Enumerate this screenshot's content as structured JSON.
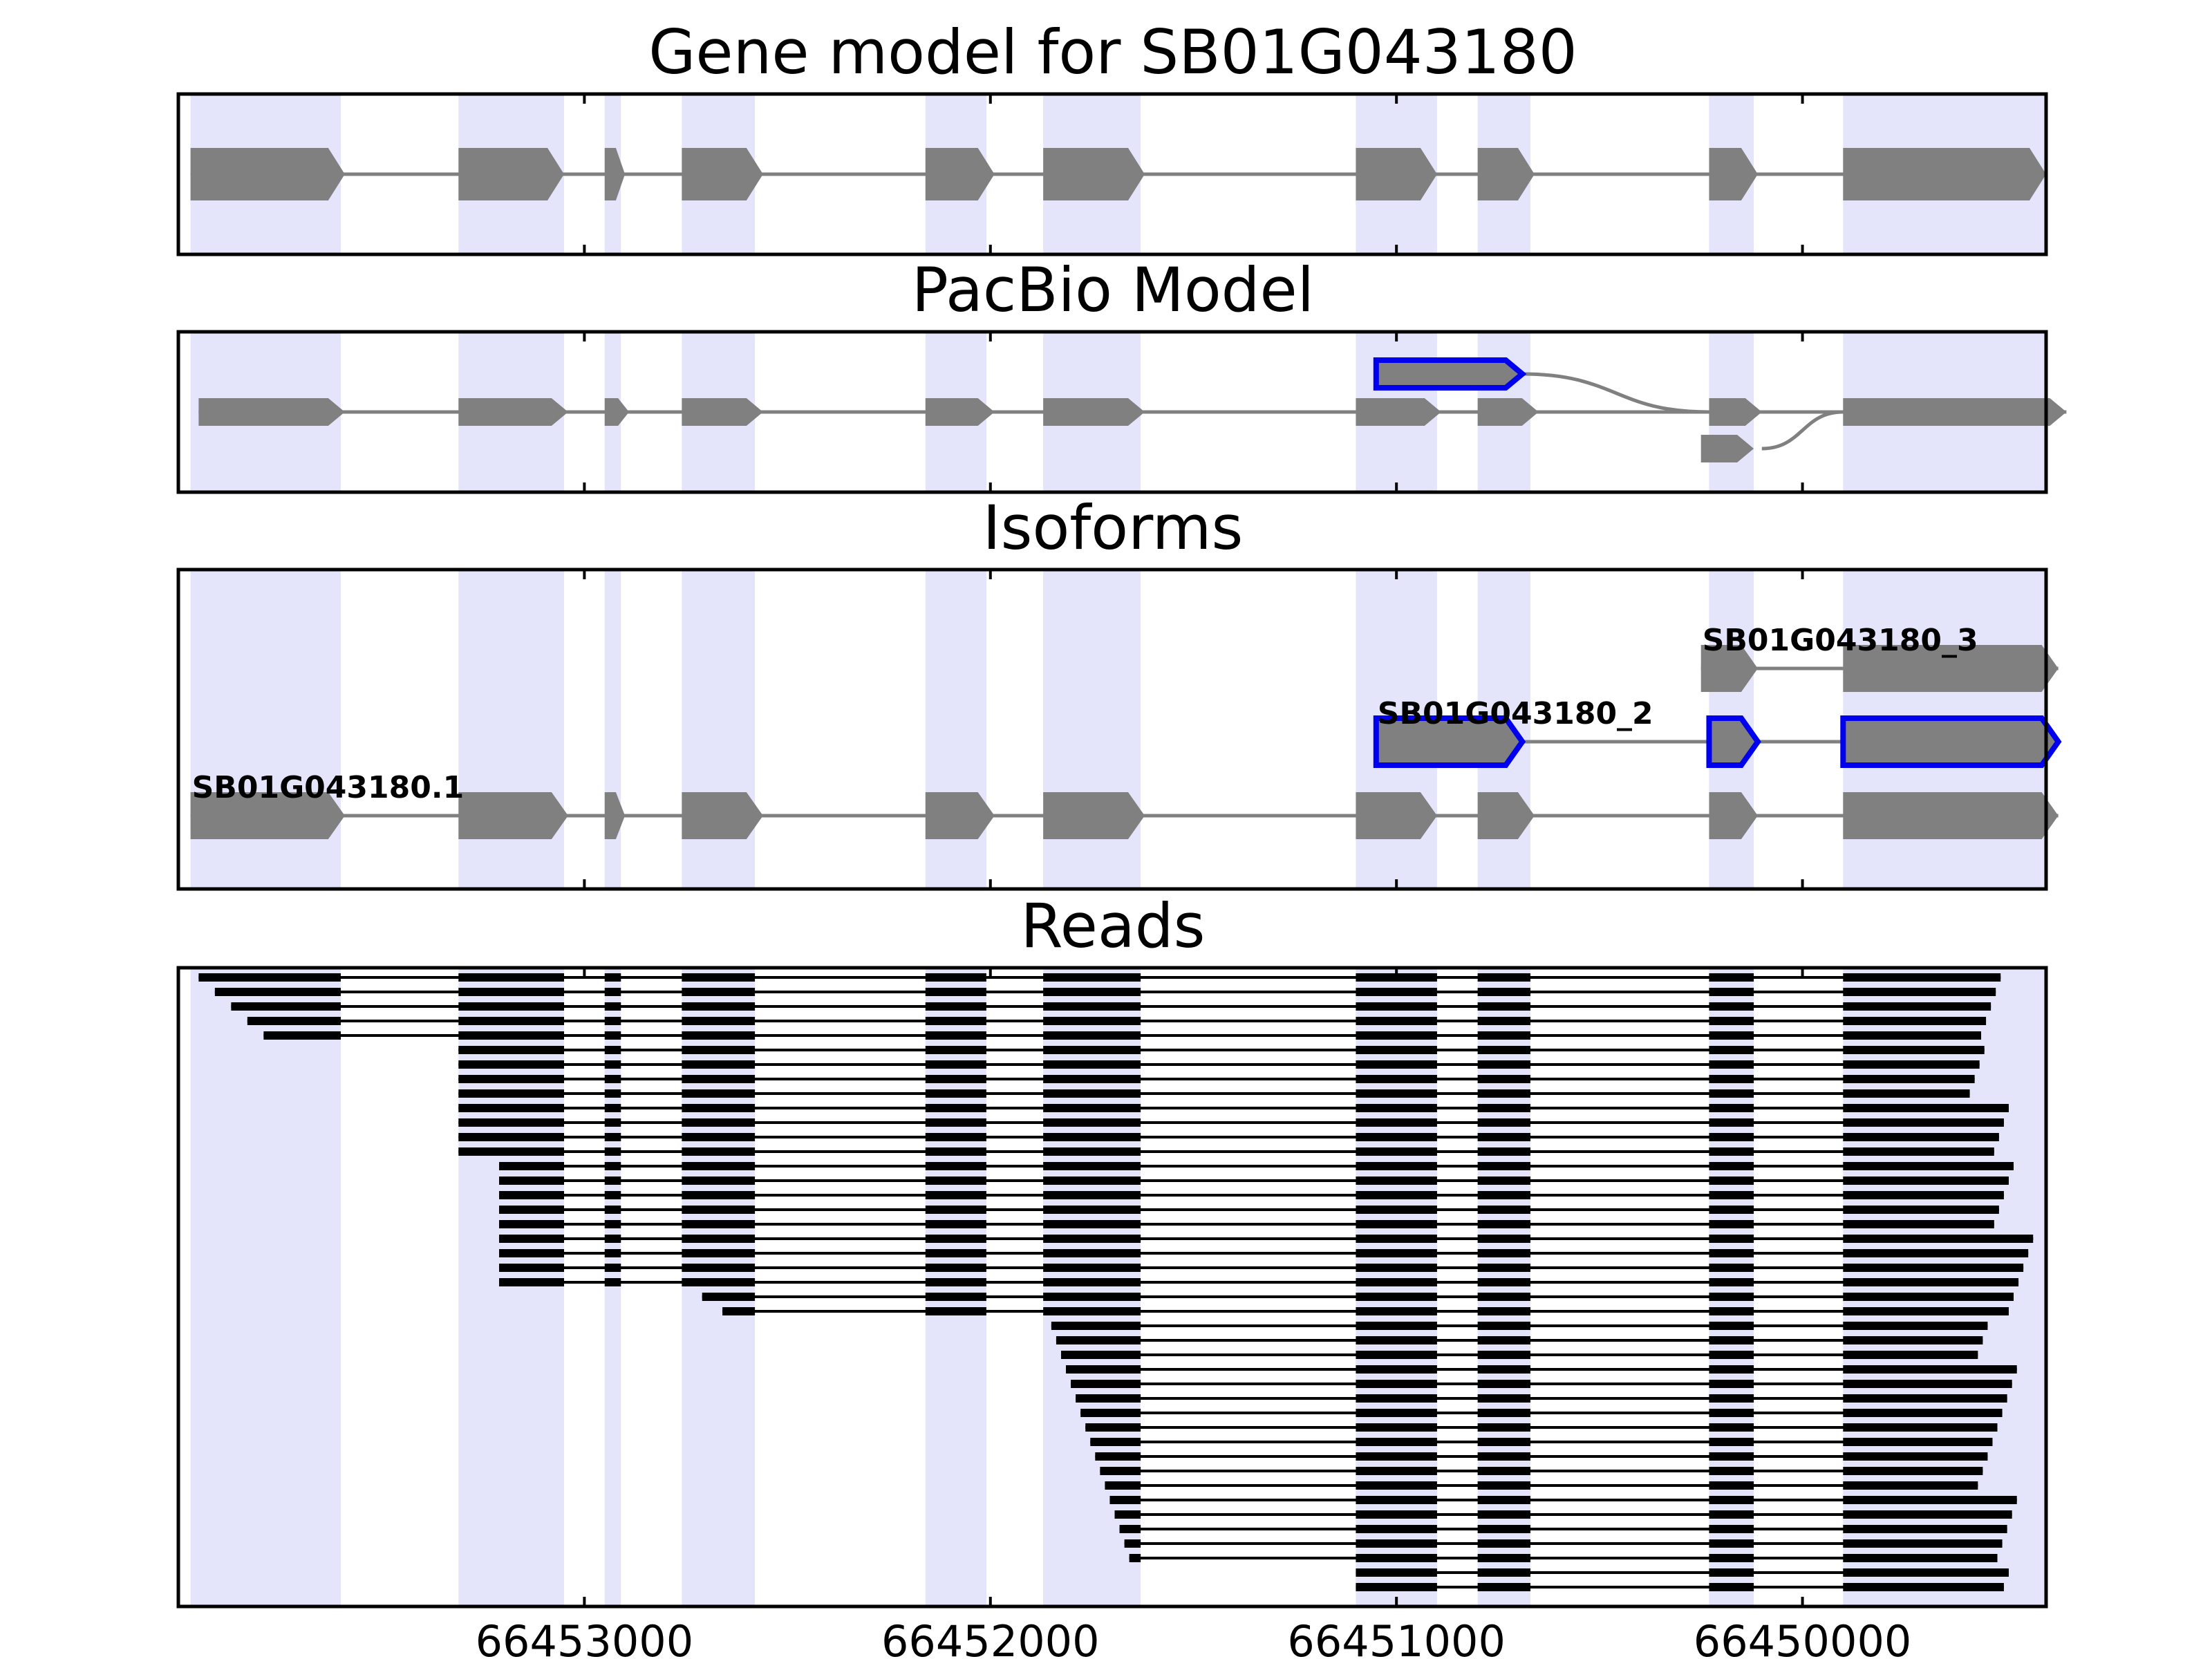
{
  "chart_data": {
    "type": "gene-structure",
    "x_axis": {
      "reversed": true,
      "range": [
        66454000,
        66449400
      ],
      "ticks": [
        66453000,
        66452000,
        66451000,
        66450000
      ],
      "tick_labels": [
        "66453000",
        "66452000",
        "66451000",
        "66450000"
      ]
    },
    "colors": {
      "exon": "#808080",
      "intron": "#808080",
      "highlight": "#0000ee",
      "band": "#e4e4fb",
      "read": "#000000"
    },
    "exon_bands": [
      [
        66453970,
        66453600
      ],
      [
        66453310,
        66453050
      ],
      [
        66452950,
        66452910
      ],
      [
        66452760,
        66452580
      ],
      [
        66452160,
        66452010
      ],
      [
        66451870,
        66451630
      ],
      [
        66451100,
        66450900
      ],
      [
        66450800,
        66450670
      ],
      [
        66450230,
        66450120
      ],
      [
        66449900,
        66449400
      ]
    ],
    "panels": [
      {
        "title": "Gene model for SB01G043180",
        "tracks": [
          {
            "row": 0,
            "exons": [
              [
                66453970,
                66453590
              ],
              [
                66453310,
                66453050
              ],
              [
                66452950,
                66452900
              ],
              [
                66452760,
                66452560
              ],
              [
                66452160,
                66451990
              ],
              [
                66451870,
                66451620
              ],
              [
                66451100,
                66450900
              ],
              [
                66450800,
                66450660
              ],
              [
                66450230,
                66450110
              ],
              [
                66449900,
                66449400
              ]
            ]
          }
        ]
      },
      {
        "title": "PacBio Model",
        "tracks": [
          {
            "row": 0,
            "highlight": true,
            "exons": [
              [
                66451050,
                66450690
              ]
            ]
          },
          {
            "row": 1,
            "exons": [
              [
                66453950,
                66453590
              ],
              [
                66453310,
                66453040
              ],
              [
                66452950,
                66452890
              ],
              [
                66452760,
                66452560
              ],
              [
                66452160,
                66451990
              ],
              [
                66451870,
                66451620
              ],
              [
                66451100,
                66450890
              ],
              [
                66450800,
                66450650
              ],
              [
                66450230,
                66450100
              ],
              [
                66449900,
                66449350
              ]
            ]
          },
          {
            "row": 2,
            "exons": [
              [
                66450250,
                66450120
              ]
            ]
          }
        ],
        "connectors": [
          {
            "from": [
              66450690,
              0
            ],
            "to": [
              66450230,
              1
            ]
          },
          {
            "from": [
              66450100,
              2
            ],
            "to": [
              66449900,
              1
            ]
          }
        ]
      },
      {
        "title": "Isoforms",
        "isoforms": [
          {
            "label": "SB01G043180.1",
            "row": 0,
            "exons": [
              [
                66453970,
                66453590
              ],
              [
                66453310,
                66453040
              ],
              [
                66452950,
                66452900
              ],
              [
                66452760,
                66452560
              ],
              [
                66452160,
                66451990
              ],
              [
                66451870,
                66451620
              ],
              [
                66451100,
                66450900
              ],
              [
                66450800,
                66450660
              ],
              [
                66450230,
                66450110
              ],
              [
                66449900,
                66449370
              ]
            ]
          },
          {
            "label": "SB01G043180_2",
            "row": 1,
            "highlight": true,
            "exons": [
              [
                66451050,
                66450690
              ],
              [
                66450230,
                66450110
              ],
              [
                66449900,
                66449370
              ]
            ]
          },
          {
            "label": "SB01G043180_3",
            "row": 2,
            "exons": [
              [
                66450250,
                66450110
              ],
              [
                66449900,
                66449370
              ]
            ]
          }
        ]
      },
      {
        "title": "Reads",
        "read_count": 43,
        "read_groups": [
          {
            "rows": 5,
            "start": 66453950,
            "start_step": 40,
            "end": 66449560
          },
          {
            "rows": 8,
            "start": 66453310,
            "start_step": 0,
            "end": 66449540
          },
          {
            "rows": 9,
            "start": 66453210,
            "start_step": 0,
            "end": 66449480
          },
          {
            "rows": 2,
            "start": 66452710,
            "start_step": 50,
            "end": 66449480
          },
          {
            "rows": 17,
            "start": 66451850,
            "start_step": 12,
            "end": 66449520
          },
          {
            "rows": 2,
            "start": 66451100,
            "start_step": 0,
            "end": 66449480
          }
        ]
      }
    ]
  }
}
